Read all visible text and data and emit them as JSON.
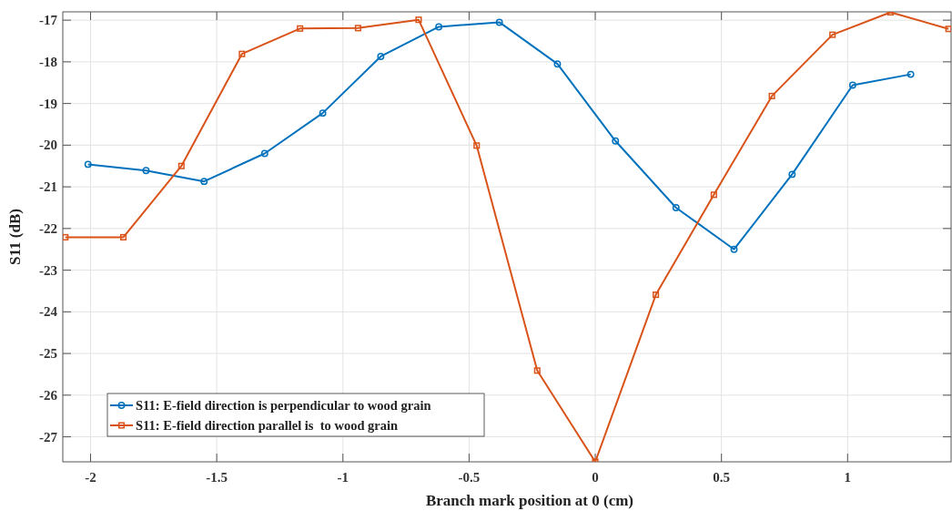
{
  "chart_data": {
    "type": "line",
    "xlabel": "Branch mark position at 0 (cm)",
    "ylabel": "S11 (dB)",
    "xlim": [
      -2.11,
      1.41
    ],
    "ylim": [
      -27.6,
      -16.8
    ],
    "xticks": [
      -2,
      -1.5,
      -1,
      -0.5,
      0,
      0.5,
      1
    ],
    "yticks": [
      -27,
      -26,
      -25,
      -24,
      -23,
      -22,
      -21,
      -20,
      -19,
      -18,
      -17
    ],
    "grid": true,
    "legend": "bottom left",
    "line_style": "solid",
    "series": [
      {
        "name": "S11: E-field direction is perpendicular to wood grain",
        "color": "#0072bd",
        "marker": "circle",
        "x": [
          -2.01,
          -1.78,
          -1.55,
          -1.31,
          -1.08,
          -0.85,
          -0.62,
          -0.38,
          -0.15,
          0.08,
          0.32,
          0.55,
          0.78,
          1.02,
          1.25
        ],
        "values": [
          -20.46,
          -20.61,
          -20.87,
          -20.2,
          -19.23,
          -17.87,
          -17.16,
          -17.05,
          -18.05,
          -19.9,
          -21.5,
          -22.5,
          -20.7,
          -18.56,
          -18.3
        ]
      },
      {
        "name": "S11: E-field direction parallel is  to wood grain",
        "color": "#d95319",
        "marker": "square",
        "x": [
          -2.1,
          -1.87,
          -1.64,
          -1.4,
          -1.17,
          -0.94,
          -0.7,
          -0.47,
          -0.23,
          0,
          0.24,
          0.47,
          0.7,
          0.94,
          1.17,
          1.4
        ],
        "values": [
          -22.21,
          -22.21,
          -20.5,
          -17.81,
          -17.2,
          -17.19,
          -16.99,
          -20.01,
          -25.41,
          -27.6,
          -23.59,
          -21.19,
          -18.82,
          -17.35,
          -16.81,
          -17.21
        ]
      }
    ]
  }
}
